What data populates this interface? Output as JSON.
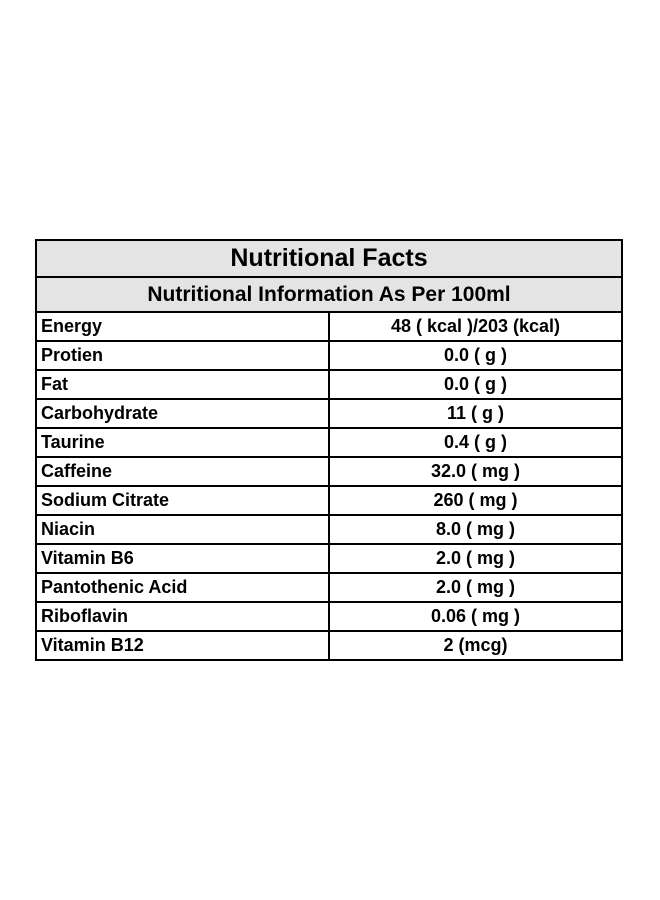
{
  "table": {
    "title": "Nutritional Facts",
    "subtitle": "Nutritional Information As Per 100ml",
    "rows": [
      {
        "name": "Energy",
        "value": "48 ( kcal )/203 (kcal)"
      },
      {
        "name": "Protien",
        "value": "0.0 ( g )"
      },
      {
        "name": "Fat",
        "value": "0.0 ( g )"
      },
      {
        "name": "Carbohydrate",
        "value": "11 ( g )"
      },
      {
        "name": "Taurine",
        "value": "0.4 ( g )"
      },
      {
        "name": "Caffeine",
        "value": "32.0 ( mg )"
      },
      {
        "name": "Sodium Citrate",
        "value": "260 ( mg )"
      },
      {
        "name": "Niacin",
        "value": "8.0 ( mg )"
      },
      {
        "name": "Vitamin B6",
        "value": "2.0 ( mg )"
      },
      {
        "name": "Pantothenic Acid",
        "value": "2.0 ( mg )"
      },
      {
        "name": "Riboflavin",
        "value": "0.06 ( mg )"
      },
      {
        "name": "Vitamin B12",
        "value": "2 (mcg)"
      }
    ]
  },
  "colors": {
    "header_background": "#e4e4e4",
    "border": "#000000",
    "text": "#000000"
  }
}
